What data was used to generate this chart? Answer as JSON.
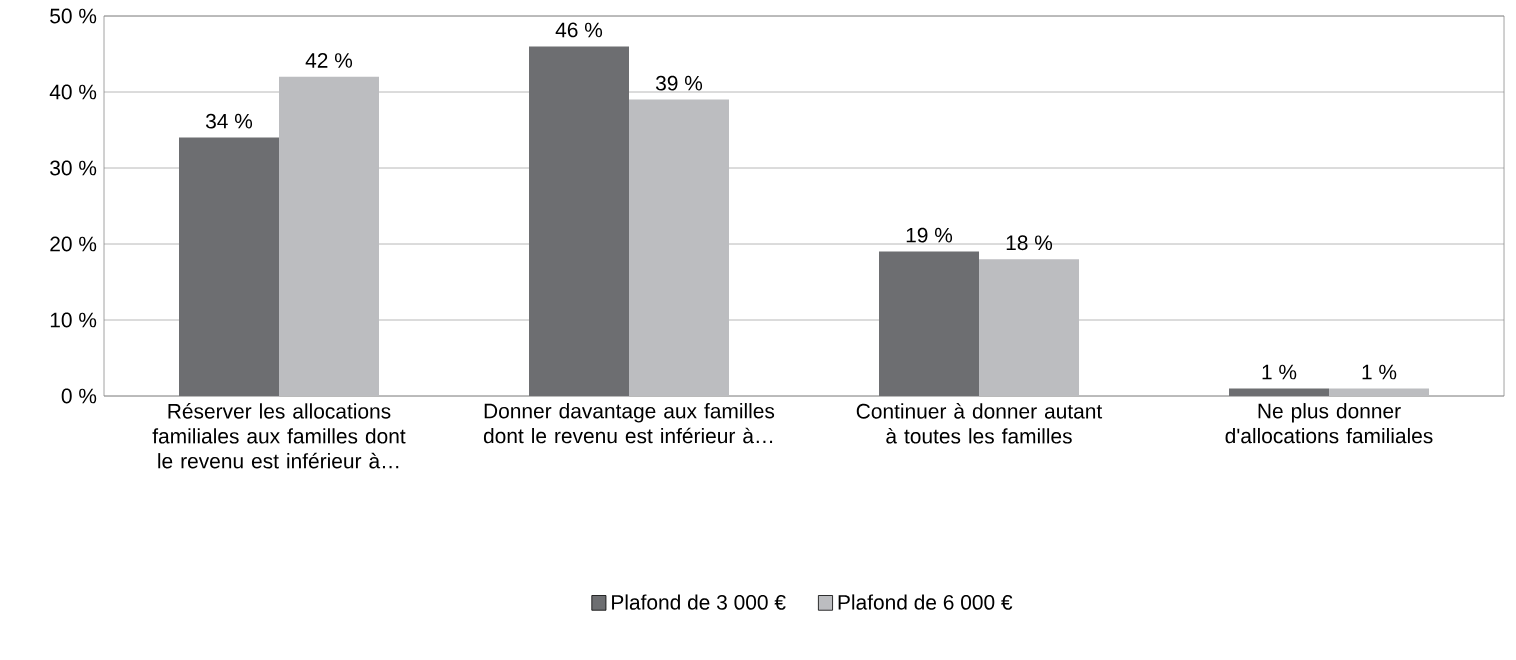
{
  "chart_data": {
    "type": "bar",
    "categories": [
      "Réserver les allocations familiales aux familles dont le revenu est inférieur à…",
      "Donner davantage aux familles dont le revenu est inférieur à…",
      "Continuer à donner autant à toutes les familles",
      "Ne plus donner d'allocations familiales"
    ],
    "series": [
      {
        "name": "Plafond de 3 000 €",
        "color": "#6d6e71",
        "values": [
          34,
          46,
          19,
          1
        ],
        "value_labels": [
          "34 %",
          "46 %",
          "19 %",
          "1 %"
        ]
      },
      {
        "name": "Plafond de 6 000 €",
        "color": "#bcbdc0",
        "values": [
          42,
          39,
          18,
          1
        ],
        "value_labels": [
          "42 %",
          "39 %",
          "18 %",
          "1 %"
        ]
      }
    ],
    "ylim": [
      0,
      50
    ],
    "yticks": [
      {
        "value": 0,
        "label": "0 %"
      },
      {
        "value": 10,
        "label": "10 %"
      },
      {
        "value": 20,
        "label": "20 %"
      },
      {
        "value": 30,
        "label": "30 %"
      },
      {
        "value": 40,
        "label": "40 %"
      },
      {
        "value": 50,
        "label": "50 %"
      }
    ],
    "grid": "y",
    "legend": "bottom"
  }
}
